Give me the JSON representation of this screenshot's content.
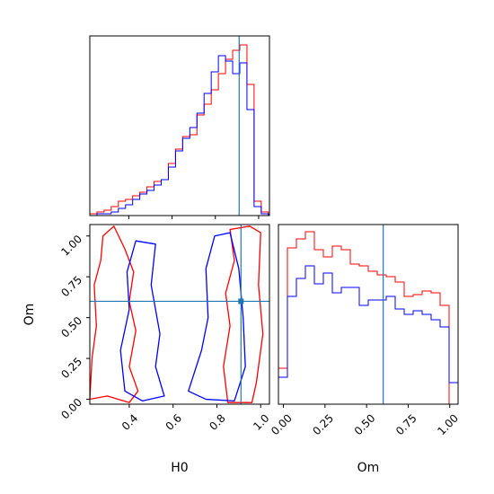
{
  "chart_data": {
    "type": "corner",
    "parameters": [
      "H0",
      "Om"
    ],
    "axis_labels": {
      "x_bottom_left": "H0",
      "x_bottom_right": "Om",
      "y_left": "Om"
    },
    "ticks": {
      "H0": [
        "0.4",
        "0.6",
        "0.8",
        "1.0"
      ],
      "Om_y": [
        "0.00",
        "0.25",
        "0.50",
        "0.75",
        "1.00"
      ],
      "Om_x": [
        "0.00",
        "0.25",
        "0.50",
        "0.75",
        "1.00"
      ]
    },
    "truth": {
      "H0": 0.91,
      "Om": 0.6
    },
    "colors": {
      "series_red": "#ff0000",
      "series_blue": "#0000ff",
      "truth": "#1f77b4",
      "axes": "#000000"
    },
    "H0_hist": {
      "xlim": [
        0.22,
        1.05
      ],
      "bin_edges": [
        0.22,
        0.253,
        0.286,
        0.319,
        0.352,
        0.385,
        0.418,
        0.451,
        0.484,
        0.517,
        0.55,
        0.583,
        0.616,
        0.649,
        0.682,
        0.715,
        0.748,
        0.781,
        0.814,
        0.847,
        0.88,
        0.913,
        0.946,
        0.979,
        1.012,
        1.045
      ],
      "red": [
        0.01,
        0.02,
        0.03,
        0.05,
        0.08,
        0.09,
        0.11,
        0.13,
        0.16,
        0.19,
        0.2,
        0.29,
        0.37,
        0.44,
        0.45,
        0.56,
        0.62,
        0.7,
        0.79,
        0.87,
        0.92,
        0.95,
        0.73,
        0.08,
        0.02
      ],
      "blue": [
        0.0,
        0.01,
        0.01,
        0.02,
        0.04,
        0.06,
        0.09,
        0.12,
        0.14,
        0.17,
        0.2,
        0.27,
        0.36,
        0.43,
        0.49,
        0.57,
        0.68,
        0.8,
        0.89,
        0.86,
        0.79,
        0.85,
        0.59,
        0.05,
        0.01
      ],
      "ylim": [
        0,
        1.0
      ]
    },
    "Om_hist": {
      "xlim": [
        -0.03,
        1.05
      ],
      "bin_edges": [
        -0.03,
        0.024,
        0.078,
        0.132,
        0.186,
        0.24,
        0.294,
        0.348,
        0.402,
        0.456,
        0.51,
        0.564,
        0.618,
        0.672,
        0.726,
        0.78,
        0.834,
        0.888,
        0.942,
        0.996,
        1.05
      ],
      "red": [
        0.2,
        0.87,
        0.92,
        0.96,
        0.86,
        0.82,
        0.88,
        0.86,
        0.78,
        0.77,
        0.74,
        0.72,
        0.71,
        0.68,
        0.6,
        0.61,
        0.63,
        0.62,
        0.55,
        0.0
      ],
      "blue": [
        0.15,
        0.6,
        0.7,
        0.77,
        0.67,
        0.73,
        0.62,
        0.65,
        0.65,
        0.55,
        0.58,
        0.58,
        0.6,
        0.53,
        0.5,
        0.52,
        0.5,
        0.47,
        0.43,
        0.12
      ],
      "ylim": [
        0,
        1.0
      ]
    },
    "contour_2d": {
      "xlim": [
        0.22,
        1.04
      ],
      "ylim": [
        -0.03,
        1.07
      ],
      "red_regions": [
        [
          [
            0.22,
            0.0
          ],
          [
            0.23,
            0.25
          ],
          [
            0.25,
            0.45
          ],
          [
            0.24,
            0.7
          ],
          [
            0.27,
            0.85
          ],
          [
            0.28,
            1.0
          ],
          [
            0.33,
            1.06
          ],
          [
            0.38,
            0.92
          ],
          [
            0.42,
            0.78
          ],
          [
            0.4,
            0.6
          ],
          [
            0.43,
            0.42
          ],
          [
            0.4,
            0.2
          ],
          [
            0.44,
            0.05
          ],
          [
            0.4,
            -0.02
          ],
          [
            0.3,
            0.02
          ]
        ],
        [
          [
            0.85,
            -0.02
          ],
          [
            0.83,
            0.2
          ],
          [
            0.86,
            0.45
          ],
          [
            0.84,
            0.65
          ],
          [
            0.88,
            0.85
          ],
          [
            0.86,
            1.04
          ],
          [
            0.95,
            1.06
          ],
          [
            1.0,
            1.02
          ],
          [
            0.99,
            0.7
          ],
          [
            1.01,
            0.4
          ],
          [
            0.98,
            0.1
          ],
          [
            0.96,
            -0.02
          ]
        ]
      ],
      "blue_regions": [
        [
          [
            0.38,
            0.05
          ],
          [
            0.36,
            0.3
          ],
          [
            0.4,
            0.55
          ],
          [
            0.39,
            0.78
          ],
          [
            0.43,
            0.97
          ],
          [
            0.52,
            0.95
          ],
          [
            0.5,
            0.7
          ],
          [
            0.54,
            0.4
          ],
          [
            0.52,
            0.2
          ],
          [
            0.56,
            0.02
          ],
          [
            0.46,
            -0.01
          ]
        ],
        [
          [
            0.67,
            0.05
          ],
          [
            0.73,
            0.3
          ],
          [
            0.76,
            0.5
          ],
          [
            0.75,
            0.8
          ],
          [
            0.79,
            1.0
          ],
          [
            0.86,
            1.02
          ],
          [
            0.9,
            0.8
          ],
          [
            0.92,
            0.5
          ],
          [
            0.93,
            0.2
          ],
          [
            0.88,
            -0.01
          ],
          [
            0.75,
            0.0
          ]
        ]
      ]
    }
  }
}
